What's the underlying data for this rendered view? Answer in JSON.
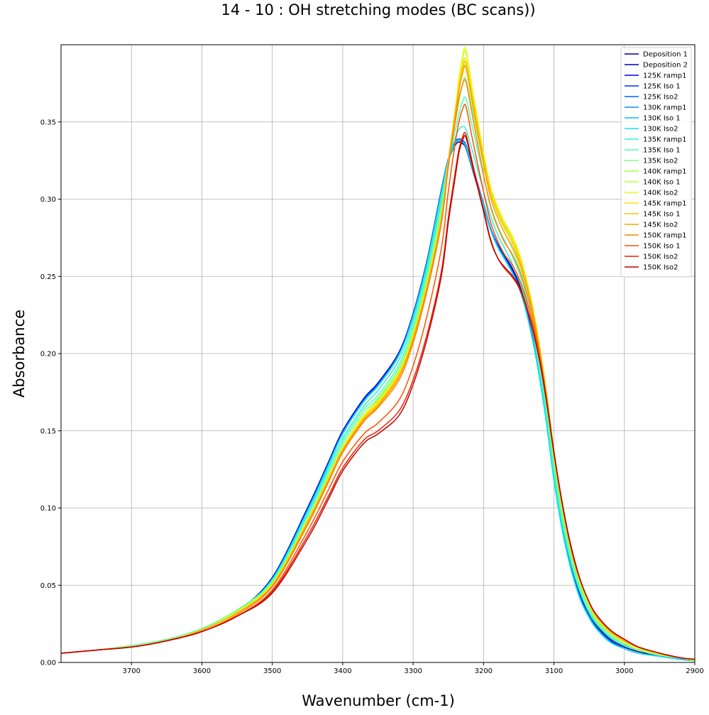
{
  "chart_data": {
    "type": "line",
    "title": "14 - 10 : OH stretching modes (BC scans))",
    "xlabel": "Wavenumber (cm-1)",
    "ylabel": "Absorbance",
    "xlim": [
      3800,
      2900
    ],
    "ylim": [
      0,
      0.4
    ],
    "x_inverted": true,
    "grid": true,
    "legend_position": "top-right",
    "x_ticks": [
      "3700",
      "3600",
      "3500",
      "3400",
      "3300",
      "3200",
      "3100",
      "3000",
      "2900"
    ],
    "y_ticks": [
      "0.00",
      "0.05",
      "0.10",
      "0.15",
      "0.20",
      "0.25",
      "0.30",
      "0.35"
    ],
    "x": [
      3800,
      3750,
      3700,
      3650,
      3600,
      3550,
      3500,
      3450,
      3420,
      3400,
      3370,
      3350,
      3320,
      3300,
      3280,
      3260,
      3250,
      3240,
      3235,
      3230,
      3225,
      3215,
      3200,
      3190,
      3180,
      3170,
      3160,
      3150,
      3140,
      3130,
      3120,
      3110,
      3100,
      3090,
      3080,
      3070,
      3060,
      3050,
      3040,
      3020,
      3000,
      2980,
      2950,
      2920,
      2900
    ],
    "series": [
      {
        "name": "Deposition 1",
        "color": "#00008f",
        "values": [
          0.006,
          0.008,
          0.01,
          0.014,
          0.021,
          0.033,
          0.055,
          0.1,
          0.13,
          0.15,
          0.17,
          0.18,
          0.2,
          0.225,
          0.26,
          0.305,
          0.325,
          0.335,
          0.337,
          0.336,
          0.333,
          0.318,
          0.295,
          0.28,
          0.27,
          0.262,
          0.255,
          0.245,
          0.23,
          0.21,
          0.185,
          0.155,
          0.12,
          0.092,
          0.07,
          0.053,
          0.04,
          0.031,
          0.024,
          0.015,
          0.01,
          0.007,
          0.004,
          0.002,
          0.001
        ]
      },
      {
        "name": "Deposition 2",
        "color": "#0000c0",
        "values": [
          0.006,
          0.008,
          0.01,
          0.014,
          0.021,
          0.033,
          0.055,
          0.1,
          0.13,
          0.15,
          0.171,
          0.181,
          0.201,
          0.226,
          0.261,
          0.306,
          0.326,
          0.336,
          0.338,
          0.337,
          0.334,
          0.319,
          0.296,
          0.281,
          0.271,
          0.263,
          0.256,
          0.246,
          0.231,
          0.211,
          0.186,
          0.156,
          0.121,
          0.093,
          0.071,
          0.054,
          0.041,
          0.032,
          0.025,
          0.016,
          0.011,
          0.008,
          0.005,
          0.003,
          0.001
        ]
      },
      {
        "name": "125K ramp1",
        "color": "#0000ff",
        "values": [
          0.006,
          0.008,
          0.01,
          0.014,
          0.021,
          0.033,
          0.054,
          0.099,
          0.129,
          0.149,
          0.17,
          0.18,
          0.2,
          0.225,
          0.26,
          0.305,
          0.326,
          0.337,
          0.339,
          0.338,
          0.335,
          0.32,
          0.297,
          0.281,
          0.27,
          0.262,
          0.254,
          0.244,
          0.229,
          0.209,
          0.184,
          0.154,
          0.119,
          0.091,
          0.069,
          0.052,
          0.039,
          0.03,
          0.023,
          0.014,
          0.009,
          0.006,
          0.004,
          0.002,
          0.001
        ]
      },
      {
        "name": "125K Iso 1",
        "color": "#0030ff",
        "values": [
          0.006,
          0.008,
          0.01,
          0.014,
          0.021,
          0.033,
          0.054,
          0.099,
          0.129,
          0.149,
          0.17,
          0.18,
          0.2,
          0.225,
          0.26,
          0.305,
          0.326,
          0.337,
          0.339,
          0.338,
          0.335,
          0.32,
          0.297,
          0.281,
          0.27,
          0.262,
          0.254,
          0.244,
          0.229,
          0.209,
          0.184,
          0.154,
          0.119,
          0.091,
          0.069,
          0.052,
          0.039,
          0.03,
          0.023,
          0.014,
          0.009,
          0.006,
          0.004,
          0.002,
          0.001
        ]
      },
      {
        "name": "125K Iso2",
        "color": "#0060ff",
        "values": [
          0.006,
          0.008,
          0.01,
          0.014,
          0.021,
          0.033,
          0.054,
          0.099,
          0.129,
          0.149,
          0.17,
          0.18,
          0.2,
          0.225,
          0.26,
          0.305,
          0.326,
          0.337,
          0.339,
          0.338,
          0.335,
          0.32,
          0.297,
          0.281,
          0.27,
          0.262,
          0.254,
          0.244,
          0.229,
          0.209,
          0.184,
          0.154,
          0.119,
          0.091,
          0.069,
          0.052,
          0.039,
          0.03,
          0.023,
          0.014,
          0.009,
          0.006,
          0.004,
          0.002,
          0.001
        ]
      },
      {
        "name": "130K ramp1",
        "color": "#0090ff",
        "values": [
          0.006,
          0.008,
          0.01,
          0.014,
          0.021,
          0.033,
          0.054,
          0.098,
          0.128,
          0.148,
          0.169,
          0.179,
          0.199,
          0.224,
          0.259,
          0.304,
          0.325,
          0.336,
          0.338,
          0.337,
          0.334,
          0.319,
          0.296,
          0.28,
          0.269,
          0.261,
          0.253,
          0.243,
          0.228,
          0.208,
          0.183,
          0.153,
          0.118,
          0.09,
          0.068,
          0.051,
          0.038,
          0.029,
          0.022,
          0.013,
          0.009,
          0.006,
          0.004,
          0.002,
          0.001
        ]
      },
      {
        "name": "130K Iso 1",
        "color": "#00c0ff",
        "values": [
          0.006,
          0.008,
          0.01,
          0.014,
          0.021,
          0.033,
          0.054,
          0.098,
          0.128,
          0.148,
          0.169,
          0.179,
          0.199,
          0.224,
          0.259,
          0.304,
          0.325,
          0.336,
          0.338,
          0.337,
          0.334,
          0.319,
          0.296,
          0.28,
          0.269,
          0.261,
          0.253,
          0.243,
          0.228,
          0.208,
          0.183,
          0.153,
          0.118,
          0.09,
          0.068,
          0.051,
          0.038,
          0.029,
          0.022,
          0.013,
          0.009,
          0.006,
          0.004,
          0.002,
          0.001
        ]
      },
      {
        "name": "130K Iso2",
        "color": "#10e0f0",
        "values": [
          0.006,
          0.008,
          0.01,
          0.014,
          0.021,
          0.033,
          0.054,
          0.098,
          0.128,
          0.148,
          0.169,
          0.179,
          0.199,
          0.224,
          0.259,
          0.304,
          0.325,
          0.336,
          0.338,
          0.337,
          0.334,
          0.319,
          0.296,
          0.28,
          0.269,
          0.261,
          0.253,
          0.243,
          0.228,
          0.208,
          0.183,
          0.153,
          0.118,
          0.09,
          0.068,
          0.051,
          0.038,
          0.029,
          0.022,
          0.013,
          0.009,
          0.006,
          0.004,
          0.002,
          0.001
        ]
      },
      {
        "name": "135K ramp1",
        "color": "#30f0d0",
        "values": [
          0.006,
          0.008,
          0.011,
          0.015,
          0.022,
          0.034,
          0.053,
          0.096,
          0.126,
          0.145,
          0.166,
          0.176,
          0.196,
          0.221,
          0.256,
          0.3,
          0.325,
          0.34,
          0.345,
          0.347,
          0.345,
          0.33,
          0.305,
          0.289,
          0.277,
          0.268,
          0.259,
          0.248,
          0.233,
          0.213,
          0.187,
          0.157,
          0.122,
          0.094,
          0.072,
          0.055,
          0.042,
          0.032,
          0.025,
          0.016,
          0.011,
          0.008,
          0.005,
          0.003,
          0.001
        ]
      },
      {
        "name": "135K Iso 1",
        "color": "#50ffb0",
        "values": [
          0.006,
          0.008,
          0.011,
          0.015,
          0.022,
          0.034,
          0.053,
          0.095,
          0.124,
          0.143,
          0.164,
          0.173,
          0.193,
          0.218,
          0.253,
          0.297,
          0.325,
          0.345,
          0.355,
          0.363,
          0.365,
          0.345,
          0.315,
          0.296,
          0.283,
          0.273,
          0.264,
          0.253,
          0.238,
          0.218,
          0.192,
          0.161,
          0.126,
          0.097,
          0.075,
          0.057,
          0.044,
          0.034,
          0.026,
          0.017,
          0.012,
          0.008,
          0.005,
          0.003,
          0.001
        ]
      },
      {
        "name": "135K Iso2",
        "color": "#80ff80",
        "values": [
          0.006,
          0.008,
          0.011,
          0.015,
          0.022,
          0.034,
          0.052,
          0.093,
          0.122,
          0.141,
          0.162,
          0.171,
          0.191,
          0.215,
          0.25,
          0.293,
          0.325,
          0.35,
          0.363,
          0.374,
          0.378,
          0.356,
          0.322,
          0.301,
          0.288,
          0.278,
          0.269,
          0.257,
          0.242,
          0.222,
          0.196,
          0.165,
          0.129,
          0.1,
          0.077,
          0.059,
          0.046,
          0.035,
          0.027,
          0.018,
          0.012,
          0.008,
          0.005,
          0.003,
          0.001
        ]
      },
      {
        "name": "140K ramp1",
        "color": "#a0ff50",
        "values": [
          0.006,
          0.008,
          0.01,
          0.014,
          0.021,
          0.033,
          0.051,
          0.092,
          0.12,
          0.139,
          0.16,
          0.17,
          0.189,
          0.213,
          0.247,
          0.29,
          0.325,
          0.355,
          0.37,
          0.382,
          0.386,
          0.362,
          0.326,
          0.305,
          0.292,
          0.282,
          0.273,
          0.262,
          0.246,
          0.226,
          0.2,
          0.169,
          0.133,
          0.103,
          0.08,
          0.061,
          0.047,
          0.036,
          0.028,
          0.019,
          0.013,
          0.009,
          0.005,
          0.003,
          0.001
        ]
      },
      {
        "name": "140K Iso 1",
        "color": "#c0ff30",
        "values": [
          0.006,
          0.008,
          0.01,
          0.014,
          0.021,
          0.033,
          0.051,
          0.092,
          0.12,
          0.139,
          0.16,
          0.169,
          0.188,
          0.212,
          0.246,
          0.289,
          0.325,
          0.358,
          0.376,
          0.39,
          0.395,
          0.368,
          0.329,
          0.307,
          0.294,
          0.284,
          0.276,
          0.265,
          0.249,
          0.229,
          0.203,
          0.172,
          0.136,
          0.106,
          0.082,
          0.063,
          0.049,
          0.038,
          0.029,
          0.019,
          0.013,
          0.009,
          0.005,
          0.003,
          0.001
        ]
      },
      {
        "name": "140K Iso2",
        "color": "#e0ff10",
        "values": [
          0.006,
          0.008,
          0.01,
          0.014,
          0.021,
          0.033,
          0.051,
          0.092,
          0.12,
          0.139,
          0.16,
          0.169,
          0.188,
          0.212,
          0.246,
          0.289,
          0.325,
          0.359,
          0.378,
          0.392,
          0.397,
          0.369,
          0.33,
          0.308,
          0.295,
          0.285,
          0.277,
          0.266,
          0.25,
          0.23,
          0.204,
          0.173,
          0.137,
          0.107,
          0.083,
          0.064,
          0.049,
          0.038,
          0.03,
          0.02,
          0.014,
          0.009,
          0.006,
          0.003,
          0.002
        ]
      },
      {
        "name": "145K ramp1",
        "color": "#ffe000",
        "values": [
          0.006,
          0.008,
          0.01,
          0.014,
          0.021,
          0.032,
          0.05,
          0.091,
          0.119,
          0.138,
          0.159,
          0.168,
          0.187,
          0.211,
          0.245,
          0.288,
          0.325,
          0.357,
          0.374,
          0.386,
          0.39,
          0.365,
          0.328,
          0.306,
          0.293,
          0.283,
          0.275,
          0.264,
          0.249,
          0.229,
          0.203,
          0.172,
          0.137,
          0.107,
          0.083,
          0.064,
          0.05,
          0.039,
          0.03,
          0.02,
          0.014,
          0.01,
          0.006,
          0.003,
          0.002
        ]
      },
      {
        "name": "145K Iso 1",
        "color": "#ffc000",
        "values": [
          0.006,
          0.008,
          0.01,
          0.014,
          0.021,
          0.032,
          0.05,
          0.091,
          0.119,
          0.138,
          0.158,
          0.167,
          0.186,
          0.21,
          0.244,
          0.287,
          0.324,
          0.356,
          0.372,
          0.384,
          0.388,
          0.363,
          0.326,
          0.304,
          0.291,
          0.281,
          0.273,
          0.262,
          0.247,
          0.228,
          0.202,
          0.172,
          0.137,
          0.107,
          0.083,
          0.064,
          0.05,
          0.039,
          0.03,
          0.02,
          0.014,
          0.01,
          0.006,
          0.003,
          0.002
        ]
      },
      {
        "name": "145K Iso2",
        "color": "#ffa000",
        "values": [
          0.006,
          0.008,
          0.01,
          0.014,
          0.021,
          0.032,
          0.05,
          0.09,
          0.118,
          0.137,
          0.157,
          0.166,
          0.185,
          0.209,
          0.243,
          0.286,
          0.323,
          0.355,
          0.37,
          0.381,
          0.385,
          0.36,
          0.323,
          0.301,
          0.288,
          0.278,
          0.27,
          0.26,
          0.245,
          0.226,
          0.201,
          0.171,
          0.136,
          0.107,
          0.083,
          0.064,
          0.05,
          0.039,
          0.03,
          0.02,
          0.014,
          0.01,
          0.006,
          0.003,
          0.002
        ]
      },
      {
        "name": "150K ramp1",
        "color": "#ff8000",
        "values": [
          0.006,
          0.008,
          0.01,
          0.014,
          0.02,
          0.031,
          0.049,
          0.089,
          0.117,
          0.136,
          0.156,
          0.165,
          0.183,
          0.207,
          0.241,
          0.284,
          0.321,
          0.351,
          0.365,
          0.374,
          0.376,
          0.352,
          0.316,
          0.295,
          0.282,
          0.272,
          0.265,
          0.255,
          0.241,
          0.223,
          0.199,
          0.17,
          0.136,
          0.107,
          0.083,
          0.064,
          0.05,
          0.039,
          0.031,
          0.021,
          0.015,
          0.01,
          0.006,
          0.003,
          0.002
        ]
      },
      {
        "name": "150K Iso 1",
        "color": "#ff5000",
        "values": [
          0.006,
          0.008,
          0.01,
          0.014,
          0.02,
          0.03,
          0.047,
          0.085,
          0.112,
          0.13,
          0.148,
          0.155,
          0.17,
          0.192,
          0.225,
          0.268,
          0.305,
          0.337,
          0.35,
          0.358,
          0.36,
          0.337,
          0.305,
          0.285,
          0.273,
          0.264,
          0.258,
          0.249,
          0.236,
          0.219,
          0.197,
          0.169,
          0.136,
          0.107,
          0.083,
          0.064,
          0.05,
          0.039,
          0.031,
          0.021,
          0.015,
          0.01,
          0.006,
          0.003,
          0.002
        ]
      },
      {
        "name": "150K Iso2",
        "color": "#e82000",
        "values": [
          0.006,
          0.008,
          0.01,
          0.014,
          0.02,
          0.03,
          0.046,
          0.082,
          0.108,
          0.126,
          0.144,
          0.15,
          0.163,
          0.183,
          0.213,
          0.253,
          0.288,
          0.318,
          0.332,
          0.34,
          0.342,
          0.322,
          0.293,
          0.274,
          0.262,
          0.255,
          0.25,
          0.243,
          0.231,
          0.215,
          0.194,
          0.167,
          0.135,
          0.107,
          0.083,
          0.064,
          0.05,
          0.039,
          0.031,
          0.021,
          0.015,
          0.01,
          0.006,
          0.003,
          0.002
        ]
      },
      {
        "name": "150K Iso2",
        "color": "#c00000",
        "values": [
          0.006,
          0.008,
          0.01,
          0.014,
          0.02,
          0.03,
          0.045,
          0.08,
          0.106,
          0.124,
          0.142,
          0.148,
          0.16,
          0.18,
          0.21,
          0.25,
          0.285,
          0.315,
          0.33,
          0.338,
          0.34,
          0.32,
          0.292,
          0.273,
          0.262,
          0.256,
          0.251,
          0.244,
          0.232,
          0.216,
          0.195,
          0.168,
          0.136,
          0.108,
          0.084,
          0.065,
          0.05,
          0.039,
          0.031,
          0.021,
          0.015,
          0.01,
          0.006,
          0.003,
          0.002
        ]
      }
    ]
  }
}
